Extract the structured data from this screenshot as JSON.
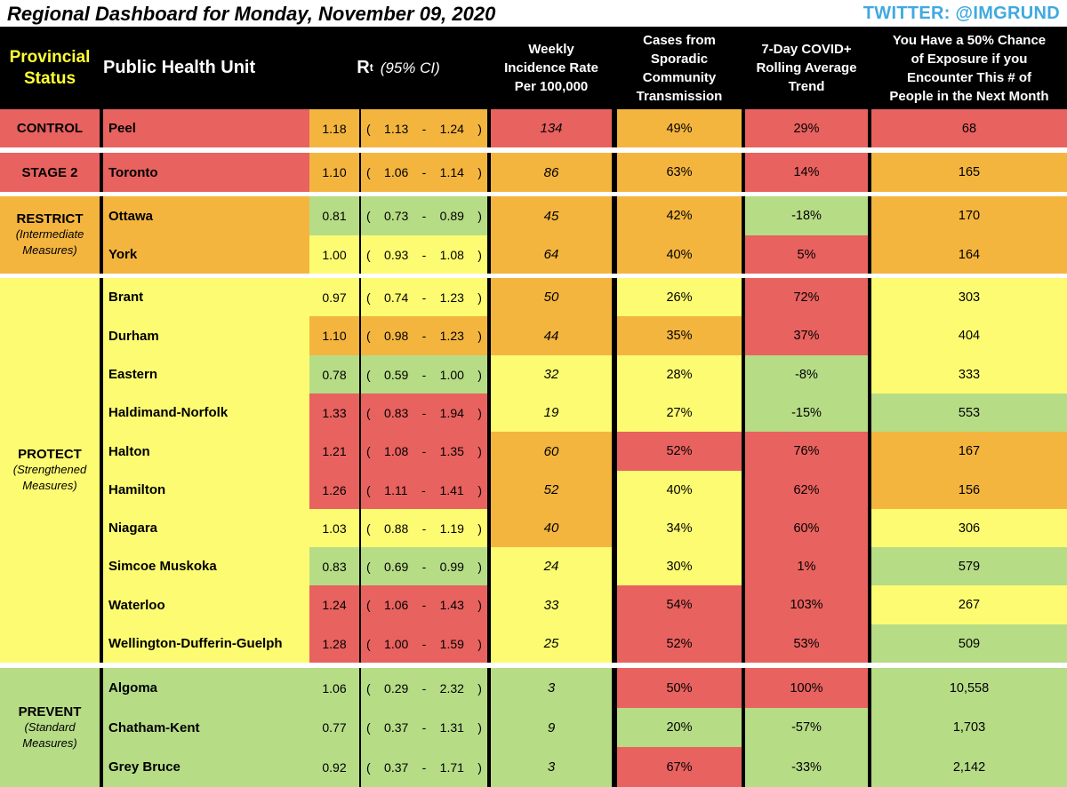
{
  "title": "Regional Dashboard for Monday, November 09, 2020",
  "twitter": "TWITTER: @IMGRUND",
  "headers": {
    "status_line1": "Provincial",
    "status_line2": "Status",
    "phu": "Public Health Unit",
    "rt_main": "R",
    "rt_sub": "t",
    "rt_ci": "(95% CI)",
    "incidence": [
      "Weekly",
      "Incidence Rate",
      "Per 100,000"
    ],
    "sporadic": [
      "Cases from",
      "Sporadic",
      "Community",
      "Transmission"
    ],
    "trend": [
      "7-Day COVID+",
      "Rolling Average",
      "Trend"
    ],
    "exposure": [
      "You Have a 50% Chance",
      "of Exposure if you",
      "Encounter This # of",
      "People in the Next Month"
    ]
  },
  "colors": {
    "red": "#e8625f",
    "orange": "#f4b53f",
    "yellow": "#fdfb72",
    "green": "#b6dc86",
    "header_bg": "#000000",
    "status_header": "#ffff33",
    "twitter": "#3fa9e0"
  },
  "groups": [
    {
      "name": "CONTROL",
      "sub": "",
      "color": "red",
      "rows": [
        {
          "phu": "Peel",
          "rt": "1.18",
          "lo": "1.13",
          "hi": "1.24",
          "rt_color": "orange",
          "inc": "134",
          "inc_color": "red",
          "spor": "49%",
          "spor_color": "orange",
          "trend": "29%",
          "trend_color": "red",
          "exp": "68",
          "exp_color": "red"
        }
      ]
    },
    {
      "name": "STAGE 2",
      "sub": "",
      "color": "red",
      "rows": [
        {
          "phu": "Toronto",
          "rt": "1.10",
          "lo": "1.06",
          "hi": "1.14",
          "rt_color": "orange",
          "inc": "86",
          "inc_color": "orange",
          "spor": "63%",
          "spor_color": "orange",
          "trend": "14%",
          "trend_color": "red",
          "exp": "165",
          "exp_color": "orange"
        }
      ]
    },
    {
      "name": "RESTRICT",
      "sub": "(Intermediate Measures)",
      "color": "orange",
      "rows": [
        {
          "phu": "Ottawa",
          "rt": "0.81",
          "lo": "0.73",
          "hi": "0.89",
          "rt_color": "green",
          "inc": "45",
          "inc_color": "orange",
          "spor": "42%",
          "spor_color": "orange",
          "trend": "-18%",
          "trend_color": "green",
          "exp": "170",
          "exp_color": "orange"
        },
        {
          "phu": "York",
          "rt": "1.00",
          "lo": "0.93",
          "hi": "1.08",
          "rt_color": "yellow",
          "inc": "64",
          "inc_color": "orange",
          "spor": "40%",
          "spor_color": "orange",
          "trend": "5%",
          "trend_color": "red",
          "exp": "164",
          "exp_color": "orange"
        }
      ]
    },
    {
      "name": "PROTECT",
      "sub": "(Strengthened Measures)",
      "color": "yellow",
      "rows": [
        {
          "phu": "Brant",
          "rt": "0.97",
          "lo": "0.74",
          "hi": "1.23",
          "rt_color": "yellow",
          "inc": "50",
          "inc_color": "orange",
          "spor": "26%",
          "spor_color": "yellow",
          "trend": "72%",
          "trend_color": "red",
          "exp": "303",
          "exp_color": "yellow"
        },
        {
          "phu": "Durham",
          "rt": "1.10",
          "lo": "0.98",
          "hi": "1.23",
          "rt_color": "orange",
          "inc": "44",
          "inc_color": "orange",
          "spor": "35%",
          "spor_color": "orange",
          "trend": "37%",
          "trend_color": "red",
          "exp": "404",
          "exp_color": "yellow"
        },
        {
          "phu": "Eastern",
          "rt": "0.78",
          "lo": "0.59",
          "hi": "1.00",
          "rt_color": "green",
          "inc": "32",
          "inc_color": "yellow",
          "spor": "28%",
          "spor_color": "yellow",
          "trend": "-8%",
          "trend_color": "green",
          "exp": "333",
          "exp_color": "yellow"
        },
        {
          "phu": "Haldimand-Norfolk",
          "rt": "1.33",
          "lo": "0.83",
          "hi": "1.94",
          "rt_color": "red",
          "inc": "19",
          "inc_color": "yellow",
          "spor": "27%",
          "spor_color": "yellow",
          "trend": "-15%",
          "trend_color": "green",
          "exp": "553",
          "exp_color": "green"
        },
        {
          "phu": "Halton",
          "rt": "1.21",
          "lo": "1.08",
          "hi": "1.35",
          "rt_color": "red",
          "inc": "60",
          "inc_color": "orange",
          "spor": "52%",
          "spor_color": "red",
          "trend": "76%",
          "trend_color": "red",
          "exp": "167",
          "exp_color": "orange"
        },
        {
          "phu": "Hamilton",
          "rt": "1.26",
          "lo": "1.11",
          "hi": "1.41",
          "rt_color": "red",
          "inc": "52",
          "inc_color": "orange",
          "spor": "40%",
          "spor_color": "yellow",
          "trend": "62%",
          "trend_color": "red",
          "exp": "156",
          "exp_color": "orange"
        },
        {
          "phu": "Niagara",
          "rt": "1.03",
          "lo": "0.88",
          "hi": "1.19",
          "rt_color": "yellow",
          "inc": "40",
          "inc_color": "orange",
          "spor": "34%",
          "spor_color": "yellow",
          "trend": "60%",
          "trend_color": "red",
          "exp": "306",
          "exp_color": "yellow"
        },
        {
          "phu": "Simcoe Muskoka",
          "rt": "0.83",
          "lo": "0.69",
          "hi": "0.99",
          "rt_color": "green",
          "inc": "24",
          "inc_color": "yellow",
          "spor": "30%",
          "spor_color": "yellow",
          "trend": "1%",
          "trend_color": "red",
          "exp": "579",
          "exp_color": "green"
        },
        {
          "phu": "Waterloo",
          "rt": "1.24",
          "lo": "1.06",
          "hi": "1.43",
          "rt_color": "red",
          "inc": "33",
          "inc_color": "yellow",
          "spor": "54%",
          "spor_color": "red",
          "trend": "103%",
          "trend_color": "red",
          "exp": "267",
          "exp_color": "yellow"
        },
        {
          "phu": "Wellington-Dufferin-Guelph",
          "rt": "1.28",
          "lo": "1.00",
          "hi": "1.59",
          "rt_color": "red",
          "inc": "25",
          "inc_color": "yellow",
          "spor": "52%",
          "spor_color": "red",
          "trend": "53%",
          "trend_color": "red",
          "exp": "509",
          "exp_color": "green"
        }
      ]
    },
    {
      "name": "PREVENT",
      "sub": "(Standard Measures)",
      "color": "green",
      "rows": [
        {
          "phu": "Algoma",
          "rt": "1.06",
          "lo": "0.29",
          "hi": "2.32",
          "rt_color": "green",
          "inc": "3",
          "inc_color": "green",
          "spor": "50%",
          "spor_color": "red",
          "trend": "100%",
          "trend_color": "red",
          "exp": "10,558",
          "exp_color": "green"
        },
        {
          "phu": "Chatham-Kent",
          "rt": "0.77",
          "lo": "0.37",
          "hi": "1.31",
          "rt_color": "green",
          "inc": "9",
          "inc_color": "green",
          "spor": "20%",
          "spor_color": "green",
          "trend": "-57%",
          "trend_color": "green",
          "exp": "1,703",
          "exp_color": "green"
        },
        {
          "phu": "Grey Bruce",
          "rt": "0.92",
          "lo": "0.37",
          "hi": "1.71",
          "rt_color": "green",
          "inc": "3",
          "inc_color": "green",
          "spor": "67%",
          "spor_color": "red",
          "trend": "-33%",
          "trend_color": "green",
          "exp": "2,142",
          "exp_color": "green"
        }
      ]
    }
  ]
}
